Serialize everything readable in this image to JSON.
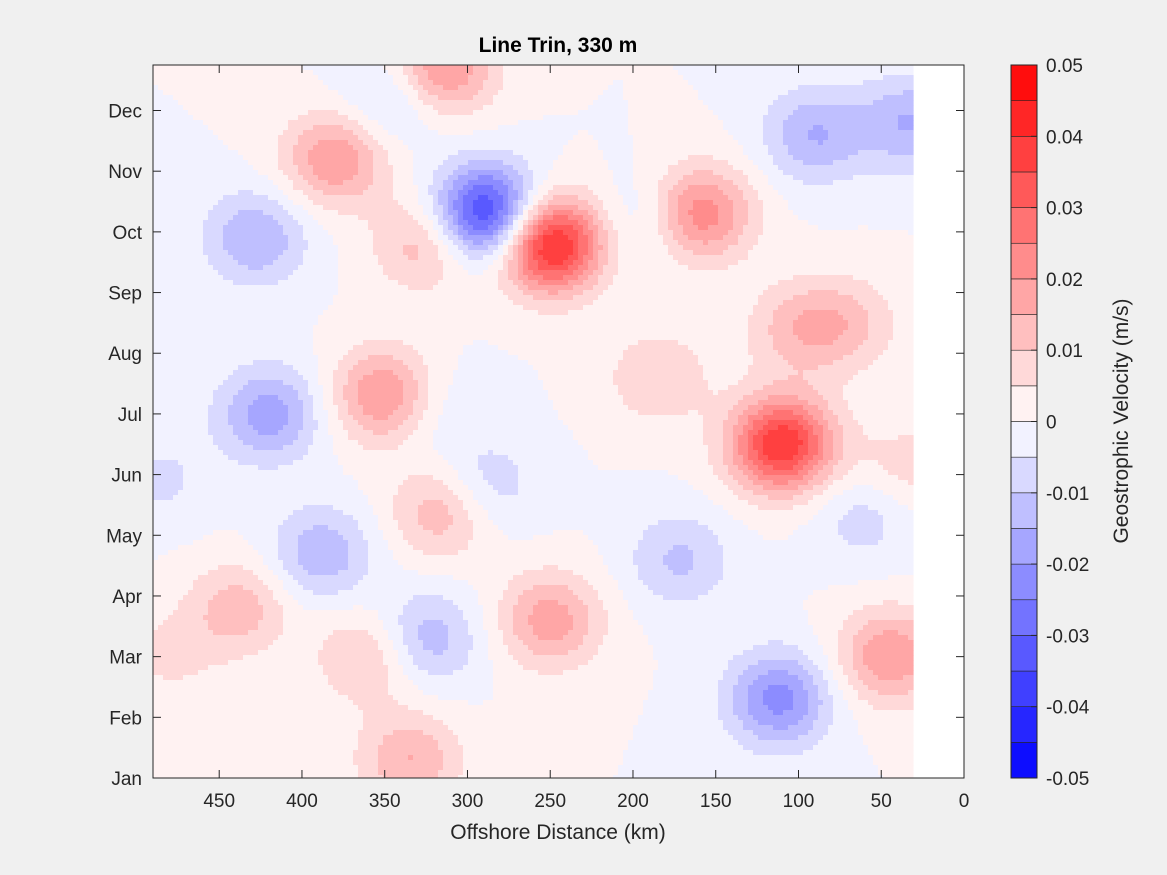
{
  "chart_data": {
    "type": "contour",
    "title": "Line Trin, 330 m",
    "xlabel": "Offshore Distance (km)",
    "xlim": [
      490,
      0
    ],
    "x_reversed": true,
    "xticks": [
      450,
      400,
      350,
      300,
      250,
      200,
      150,
      100,
      50,
      0
    ],
    "ylabel": "",
    "yticks": [
      "Jan",
      "Feb",
      "Mar",
      "Apr",
      "May",
      "Jun",
      "Jul",
      "Aug",
      "Sep",
      "Oct",
      "Nov",
      "Dec"
    ],
    "ylim": [
      0,
      11.75
    ],
    "colorbar": {
      "label": "Geostrophic Velocity (m/s)",
      "range": [
        -0.05,
        0.05
      ],
      "ticks": [
        0.05,
        0.04,
        0.03,
        0.02,
        0.01,
        0,
        -0.01,
        -0.02,
        -0.03,
        -0.04,
        -0.05
      ],
      "tick_labels": [
        "0.05",
        "0.04",
        "0.03",
        "0.02",
        "0.01",
        "0",
        "-0.01",
        "-0.02",
        "-0.03",
        "-0.04",
        "-0.05"
      ],
      "levels": 20,
      "negative_color": "#0000ff",
      "zero_color": "#ffffff",
      "positive_color": "#ff0000"
    },
    "data_x_extent": [
      490,
      30
    ],
    "features": [
      {
        "x": 250,
        "month": 8.8,
        "value": 0.045
      },
      {
        "x": 288,
        "month": 9.3,
        "value": -0.04
      },
      {
        "x": 110,
        "month": 5.5,
        "value": 0.04
      },
      {
        "x": 160,
        "month": 9.3,
        "value": 0.025
      },
      {
        "x": 380,
        "month": 10.2,
        "value": 0.02
      },
      {
        "x": 350,
        "month": 6.3,
        "value": 0.022
      },
      {
        "x": 315,
        "month": 11.7,
        "value": 0.022
      },
      {
        "x": 420,
        "month": 6.0,
        "value": -0.018
      },
      {
        "x": 428,
        "month": 8.9,
        "value": -0.015
      },
      {
        "x": 90,
        "month": 10.6,
        "value": -0.015
      },
      {
        "x": 32,
        "month": 10.8,
        "value": -0.015
      },
      {
        "x": 45,
        "month": 2.0,
        "value": 0.02
      },
      {
        "x": 112,
        "month": 1.3,
        "value": -0.022
      },
      {
        "x": 250,
        "month": 2.6,
        "value": 0.018
      },
      {
        "x": 315,
        "month": 4.4,
        "value": 0.015
      },
      {
        "x": 290,
        "month": 4.8,
        "value": -0.01
      },
      {
        "x": 325,
        "month": 2.3,
        "value": -0.014
      },
      {
        "x": 388,
        "month": 3.7,
        "value": -0.014
      },
      {
        "x": 438,
        "month": 2.8,
        "value": 0.013
      },
      {
        "x": 325,
        "month": 8.8,
        "value": 0.014
      },
      {
        "x": 345,
        "month": 11.2,
        "value": -0.01
      },
      {
        "x": 190,
        "month": 9.2,
        "value": -0.008
      },
      {
        "x": 185,
        "month": 6.6,
        "value": 0.01
      },
      {
        "x": 172,
        "month": 3.6,
        "value": -0.011
      },
      {
        "x": 335,
        "month": 0.3,
        "value": 0.015
      },
      {
        "x": 360,
        "month": 2.0,
        "value": 0.012
      },
      {
        "x": 480,
        "month": 2.0,
        "value": 0.006
      },
      {
        "x": 322,
        "month": 6.1,
        "value": -0.006
      },
      {
        "x": 485,
        "month": 4.9,
        "value": -0.006
      },
      {
        "x": 60,
        "month": 4.3,
        "value": -0.008
      },
      {
        "x": 100,
        "month": 7.4,
        "value": 0.012
      },
      {
        "x": 70,
        "month": 7.5,
        "value": 0.01
      },
      {
        "x": 35,
        "month": 5.1,
        "value": 0.008
      }
    ]
  }
}
